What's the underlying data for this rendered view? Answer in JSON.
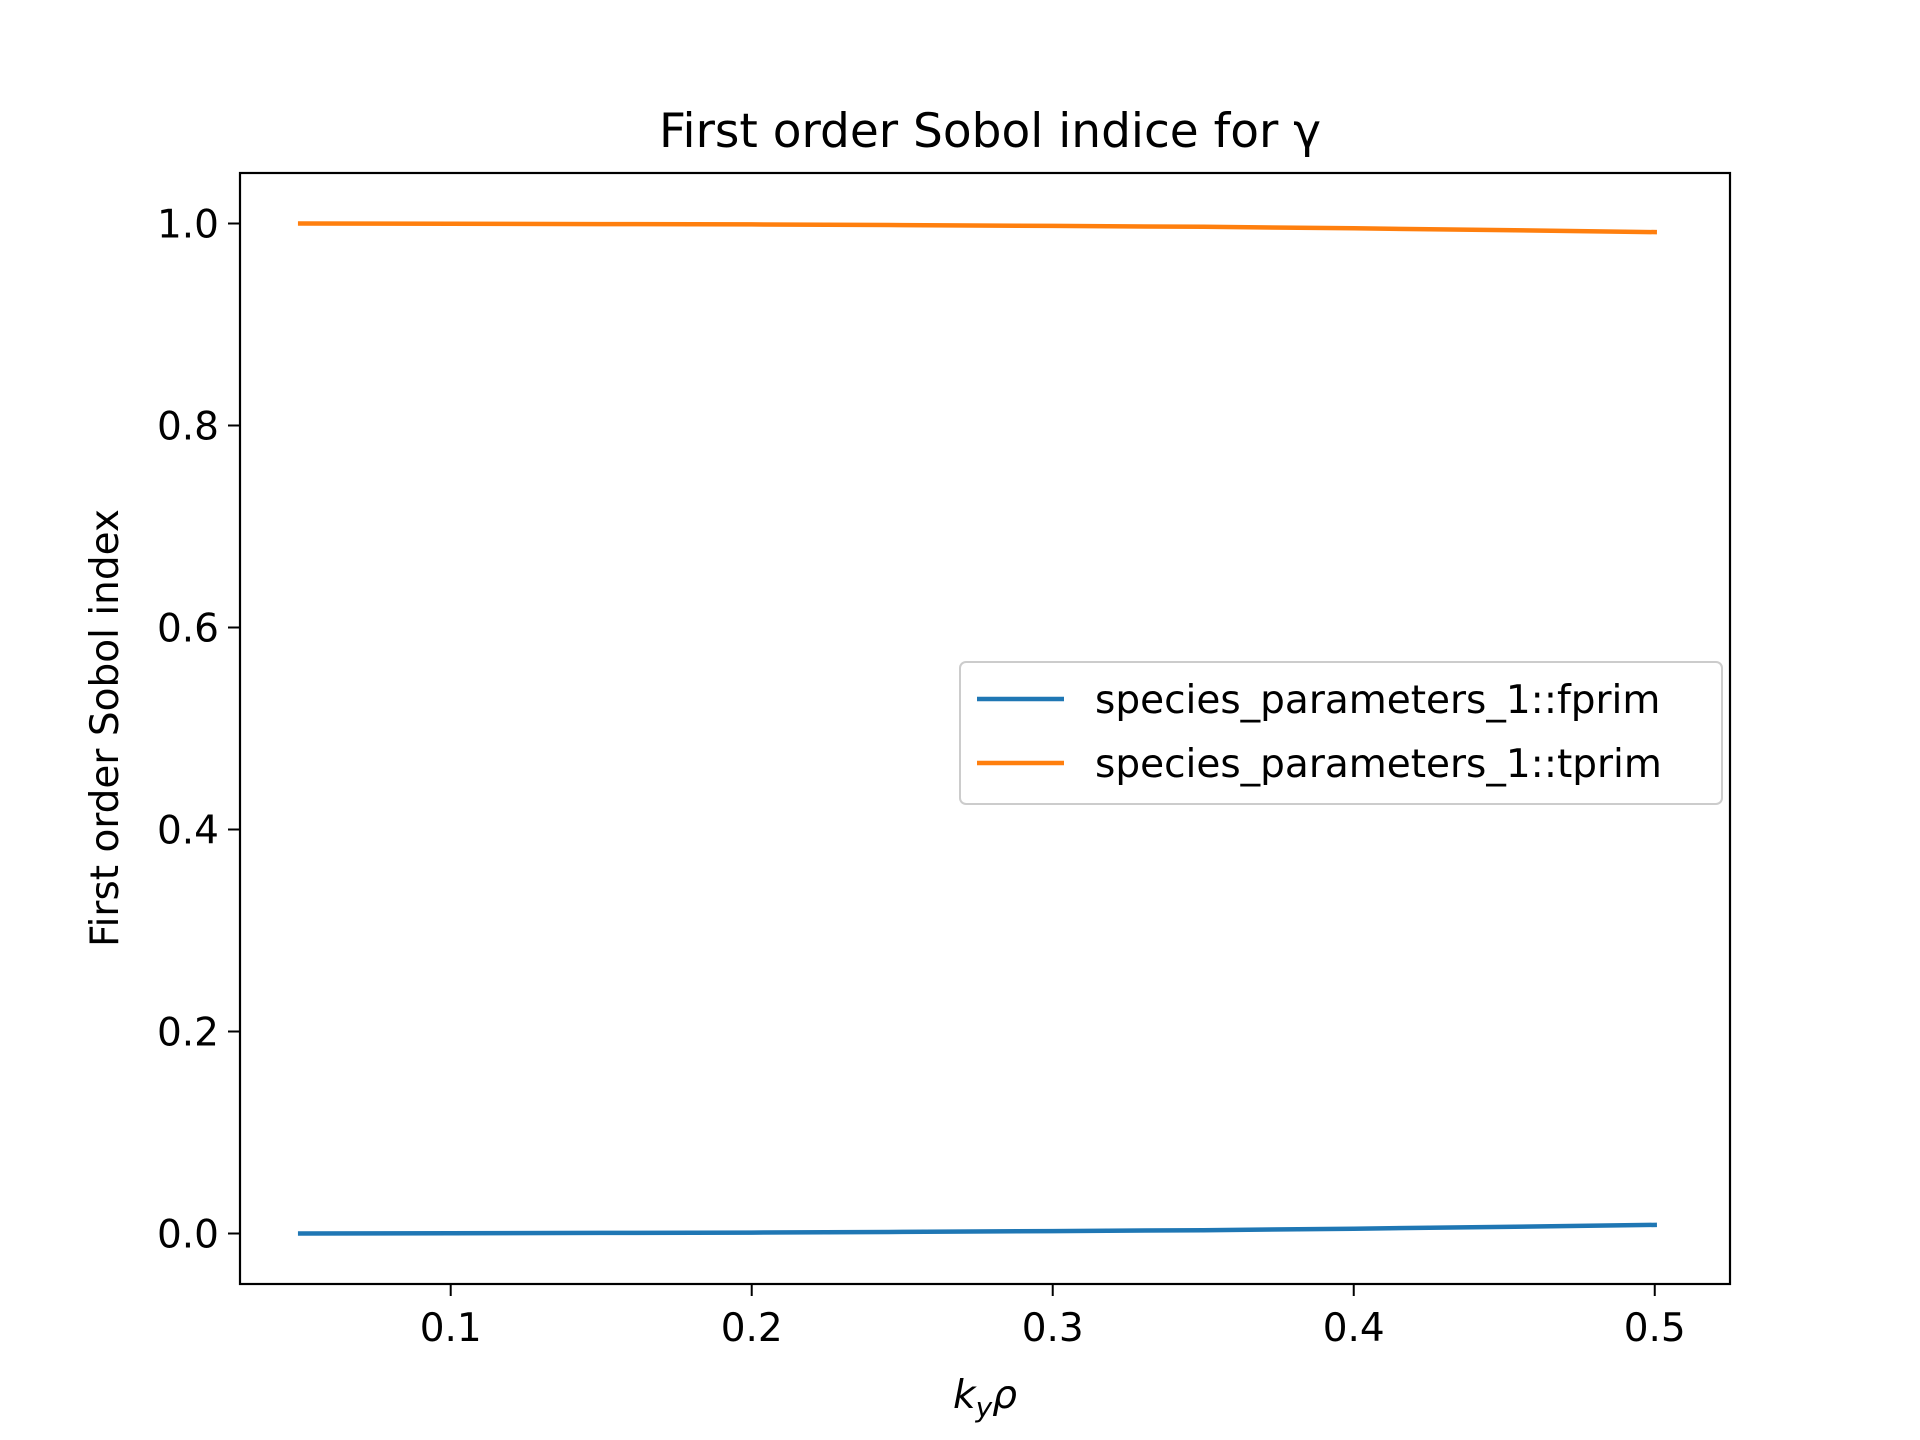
{
  "chart_data": {
    "type": "line",
    "title": "First order Sobol indice for γ",
    "xlabel": "k_y ρ",
    "xlabel_parts": {
      "base": "k",
      "subscript": "y",
      "suffix": "ρ"
    },
    "ylabel": "First order Sobol index",
    "xlim": [
      0.03,
      0.525
    ],
    "ylim": [
      -0.05,
      1.05
    ],
    "x_ticks": [
      0.1,
      0.2,
      0.3,
      0.4,
      0.5
    ],
    "x_tick_labels": [
      "0.1",
      "0.2",
      "0.3",
      "0.4",
      "0.5"
    ],
    "y_ticks": [
      0.0,
      0.2,
      0.4,
      0.6,
      0.8,
      1.0
    ],
    "y_tick_labels": [
      "0.0",
      "0.2",
      "0.4",
      "0.6",
      "0.8",
      "1.0"
    ],
    "grid": false,
    "legend_position": "center-right",
    "x": [
      0.05,
      0.1,
      0.15,
      0.2,
      0.25,
      0.3,
      0.35,
      0.4,
      0.45,
      0.5
    ],
    "series": [
      {
        "name": "species_parameters_1::fprim",
        "color": "#1f77b4",
        "values": [
          0.0,
          0.0003,
          0.0006,
          0.0009,
          0.0016,
          0.0024,
          0.0033,
          0.0048,
          0.0065,
          0.0085
        ]
      },
      {
        "name": "species_parameters_1::tprim",
        "color": "#ff7f0e",
        "values": [
          1.0,
          0.9997,
          0.9994,
          0.9991,
          0.9984,
          0.9976,
          0.9967,
          0.9952,
          0.9935,
          0.9915
        ]
      }
    ]
  }
}
